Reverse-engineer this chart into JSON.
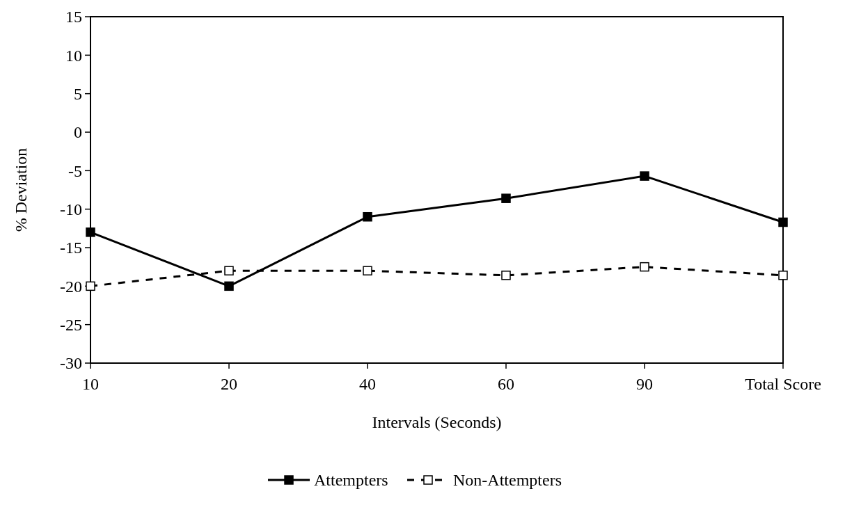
{
  "chart_data": {
    "type": "line",
    "xlabel": "Intervals (Seconds)",
    "ylabel": "% Deviation",
    "categories": [
      "10",
      "20",
      "40",
      "60",
      "90",
      "Total Score"
    ],
    "series": [
      {
        "name": "Attempters",
        "color": "#000000",
        "values": [
          -13,
          -20,
          -11,
          -8.6,
          -5.7,
          -11.7
        ],
        "line_style": "solid",
        "marker": "square"
      },
      {
        "name": "Non-Attempters",
        "color": "#000000",
        "values": [
          -20,
          -18,
          -18,
          -18.6,
          -17.5,
          -18.6
        ],
        "line_style": "dashed",
        "marker": "square"
      }
    ],
    "ylim": [
      -30,
      15
    ],
    "yticks": [
      -30,
      -25,
      -20,
      -15,
      -10,
      -5,
      0,
      5,
      10,
      15
    ],
    "grid": false,
    "legend": "bottom"
  }
}
